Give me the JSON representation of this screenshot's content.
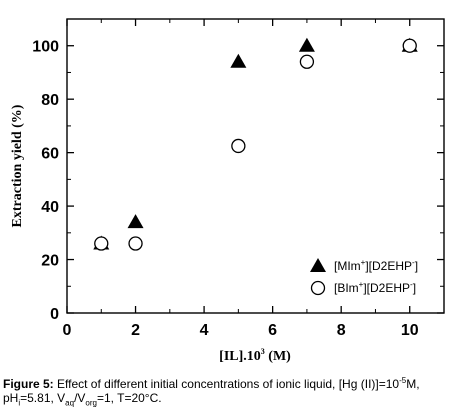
{
  "chart_data": {
    "type": "scatter",
    "xlabel_main": "[IL].10",
    "xlabel_exp": "3",
    "xlabel_unit": " (M)",
    "ylabel": "Extraction yield (%)",
    "xlim": [
      0,
      11
    ],
    "ylim": [
      0,
      110
    ],
    "xticks": [
      0,
      2,
      4,
      6,
      8,
      10
    ],
    "yticks": [
      0,
      20,
      40,
      60,
      80,
      100
    ],
    "legend_position": "bottom-right",
    "series": [
      {
        "name_pre": "[MIm",
        "name_sup": "+",
        "name_post": "][D2EHP",
        "name_sup2": "-",
        "name_end": "]",
        "marker": "filled-triangle",
        "x": [
          2,
          5,
          7
        ],
        "y": [
          34,
          94,
          100
        ]
      },
      {
        "name_pre": "[BIm",
        "name_sup": "+",
        "name_post": "][D2EHP",
        "name_sup2": "-",
        "name_end": "]",
        "marker": "open-circle",
        "x": [
          1,
          2,
          5,
          7,
          10
        ],
        "y": [
          26,
          26,
          62.5,
          94,
          100
        ]
      }
    ],
    "overlap_marker": {
      "x": 1,
      "y": 26,
      "marker": "filled-triangle"
    },
    "overlap_marker2": {
      "x": 10,
      "y": 100,
      "marker": "filled-triangle"
    }
  },
  "caption": {
    "label": "Figure 5:",
    "text_a": " Effect of different initial concentrations of ionic liquid, [Hg (II)]=10",
    "text_a_sup": "-5",
    "text_b": "M,",
    "text_c": "pH",
    "text_c_sub": "i",
    "text_d": "=5.81, V",
    "text_d_sub": "aq",
    "text_e": "/V",
    "text_e_sub": "org",
    "text_f": "=1, T=20°C."
  }
}
